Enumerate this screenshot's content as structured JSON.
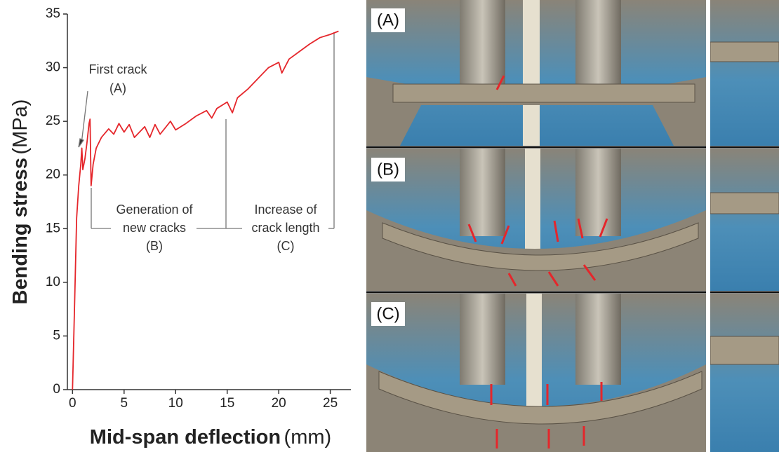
{
  "chart_data": {
    "type": "line",
    "x_label": "Mid-span deflection",
    "x_unit": "(mm)",
    "y_label": "Bending stress",
    "y_unit": "(MPa)",
    "annotations": [
      "First crack",
      "(A)",
      "Generation of",
      "new cracks",
      "(B)",
      "Increase of",
      "crack length",
      "(C)"
    ],
    "x": [
      0,
      0.2,
      0.4,
      0.6,
      0.8,
      0.9,
      1.0,
      1.2,
      1.4,
      1.6,
      1.7,
      1.8,
      2.0,
      2.3,
      2.8,
      3.5,
      4.0,
      4.5,
      5,
      5.5,
      6,
      7,
      7.5,
      8,
      8.5,
      9.5,
      10,
      11,
      12,
      13,
      13.5,
      14,
      15,
      15.5,
      16,
      17,
      18,
      19,
      20,
      20.3,
      21,
      22,
      23,
      24,
      25,
      25.8
    ],
    "series": [
      {
        "color": "#e5262b",
        "values": [
          0,
          8,
          16,
          19,
          21,
          22.5,
          20.5,
          21.5,
          23,
          24.8,
          25.2,
          19,
          21,
          22.5,
          23.5,
          24.3,
          23.8,
          24.8,
          24,
          24.7,
          23.5,
          24.5,
          23.5,
          24.7,
          23.8,
          25,
          24.2,
          24.8,
          25.5,
          26,
          25.3,
          26.2,
          26.8,
          25.8,
          27.2,
          28,
          29,
          30,
          30.5,
          29.5,
          30.8,
          31.5,
          32.2,
          32.8,
          33.1,
          33.4
        ]
      }
    ],
    "xlim": [
      -0.5,
      27
    ],
    "ylim": [
      0,
      35
    ],
    "xticks": [
      0,
      5,
      10,
      15,
      20,
      25
    ],
    "yticks": [
      0,
      5,
      10,
      15,
      20,
      25,
      30,
      35
    ]
  },
  "photo_labels": [
    "(A)",
    "(B)",
    "(C)"
  ]
}
